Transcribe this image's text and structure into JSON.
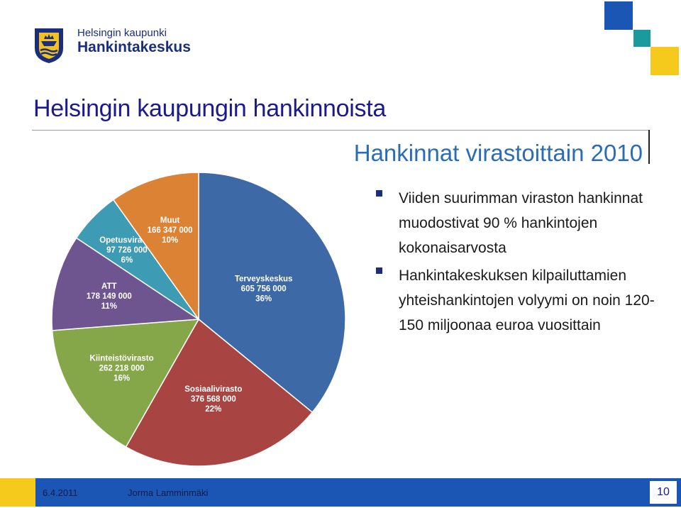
{
  "header": {
    "org_line1": "Helsingin kaupunki",
    "org_line2": "Hankintakeskus"
  },
  "slide": {
    "title": "Helsingin kaupungin hankinnoista",
    "subtitle": "Hankinnat virastoittain 2010"
  },
  "bullets": [
    "Viiden suurimman viraston hankinnat muodostivat 90 % hankintojen kokonaisarvosta",
    "Hankintakeskuksen kilpailuttamien yhteishankintojen volyymi on noin 120-150 miljoonaa euroa vuosittain"
  ],
  "footer": {
    "date": "6.4.2011",
    "author": "Jorma Lamminmäki",
    "page": "10"
  },
  "colors": {
    "accent_blue": "#1b56b5",
    "accent_yellow": "#f6c91d",
    "accent_teal": "#1a9a9c",
    "title": "#1a1a8c",
    "subtitle": "#2a6db5"
  },
  "chart_data": {
    "type": "pie",
    "title": "",
    "slices": [
      {
        "name": "Terveyskeskus",
        "value": 605756000,
        "value_label": "605 756 000",
        "percent_label": "36%",
        "color": "#3d6aa6"
      },
      {
        "name": "Sosiaalivirasto",
        "value": 376568000,
        "value_label": "376 568 000",
        "percent_label": "22%",
        "color": "#a84542"
      },
      {
        "name": "Kiinteistövirasto",
        "value": 262218000,
        "value_label": "262 218 000",
        "percent_label": "16%",
        "color": "#86a64a"
      },
      {
        "name": "ATT",
        "value": 178149000,
        "value_label": "178 149 000",
        "percent_label": "11%",
        "color": "#6f5590"
      },
      {
        "name": "Opetusvirasto",
        "value": 97726000,
        "value_label": "97 726 000",
        "percent_label": "6%",
        "color": "#3d9bb3"
      },
      {
        "name": "Muut",
        "value": 166347000,
        "value_label": "166 347 000",
        "percent_label": "10%",
        "color": "#dc8235"
      }
    ],
    "legend": "none",
    "labels": "inside"
  }
}
